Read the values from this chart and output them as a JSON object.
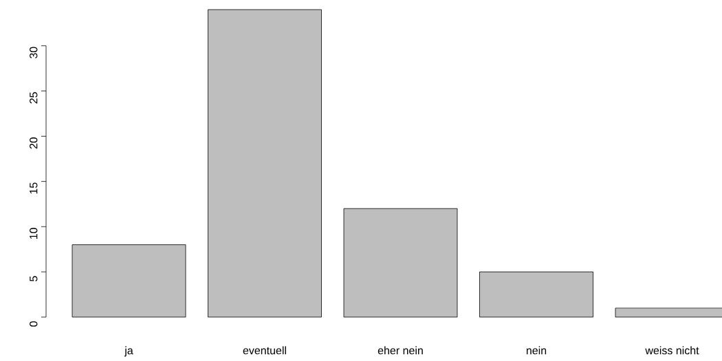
{
  "chart_data": {
    "type": "bar",
    "categories": [
      "ja",
      "eventuell",
      "eher nein",
      "nein",
      "weiss nicht"
    ],
    "values": [
      8,
      34,
      12,
      5,
      1
    ],
    "color": "#bebebe",
    "ylim": [
      0,
      34
    ],
    "yticks": [
      0,
      5,
      10,
      15,
      20,
      25,
      30
    ]
  }
}
